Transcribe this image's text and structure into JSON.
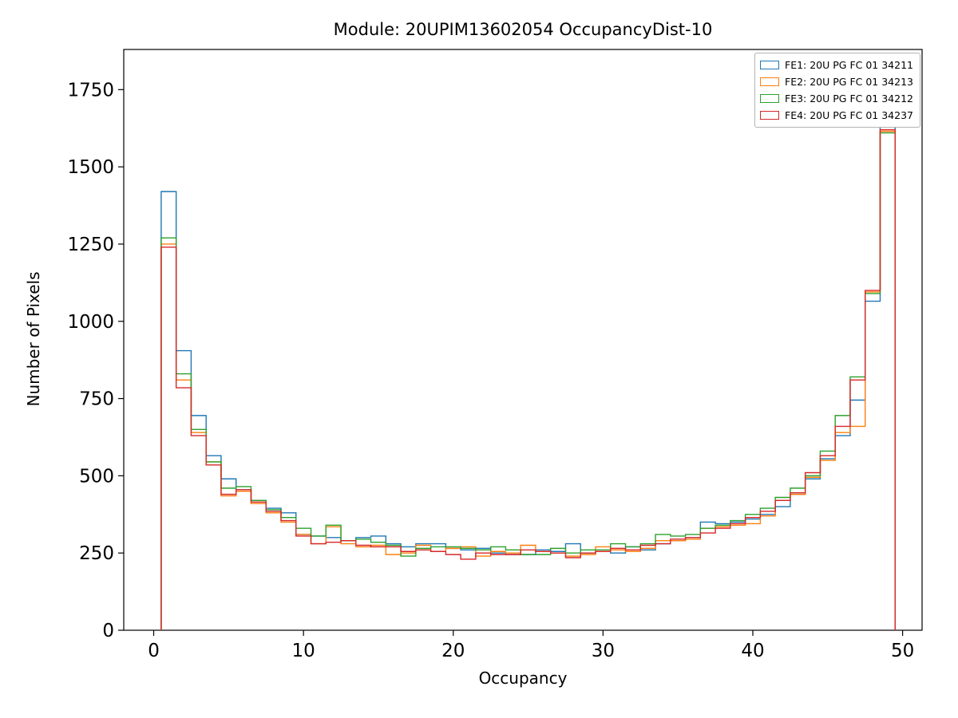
{
  "figure": {
    "title": "Module: 20UPIM13602054 OccupancyDist-10",
    "xlabel": "Occupancy",
    "ylabel": "Number of Pixels"
  },
  "chart_data": {
    "type": "histogram-step",
    "title": "Module: 20UPIM13602054 OccupancyDist-10",
    "xlabel": "Occupancy",
    "ylabel": "Number of Pixels",
    "xlim": [
      -2.0,
      51.3
    ],
    "ylim": [
      0,
      1880
    ],
    "xticks": [
      0,
      10,
      20,
      30,
      40,
      50
    ],
    "yticks": [
      0,
      250,
      500,
      750,
      1000,
      1250,
      1500,
      1750
    ],
    "grid": false,
    "legend_position": "upper right",
    "bin_start": 0.5,
    "bin_width": 1,
    "bin_count": 49,
    "series": [
      {
        "name": "FE1: 20U PG FC 01 34211",
        "color": "#1f77b4",
        "values": [
          1420,
          905,
          695,
          565,
          490,
          455,
          420,
          395,
          380,
          310,
          305,
          300,
          290,
          300,
          305,
          280,
          270,
          280,
          280,
          265,
          260,
          265,
          250,
          245,
          245,
          260,
          255,
          280,
          250,
          255,
          250,
          270,
          260,
          280,
          290,
          300,
          350,
          345,
          350,
          360,
          375,
          400,
          440,
          490,
          555,
          630,
          745,
          1065,
          1630
        ]
      },
      {
        "name": "FE2: 20U PG FC 01 34213",
        "color": "#ff7f0e",
        "values": [
          1250,
          810,
          640,
          545,
          435,
          450,
          410,
          380,
          350,
          310,
          280,
          335,
          280,
          270,
          275,
          245,
          250,
          275,
          255,
          265,
          270,
          240,
          255,
          250,
          275,
          255,
          250,
          240,
          245,
          270,
          260,
          255,
          265,
          290,
          290,
          295,
          330,
          335,
          340,
          345,
          370,
          420,
          440,
          495,
          550,
          640,
          660,
          1095,
          1615
        ]
      },
      {
        "name": "FE3: 20U PG FC 01 34212",
        "color": "#2ca02c",
        "values": [
          1270,
          830,
          650,
          545,
          460,
          465,
          420,
          390,
          365,
          330,
          305,
          340,
          290,
          295,
          285,
          275,
          240,
          265,
          270,
          270,
          265,
          260,
          270,
          260,
          245,
          245,
          265,
          250,
          260,
          260,
          280,
          270,
          280,
          310,
          305,
          310,
          330,
          340,
          355,
          375,
          395,
          430,
          460,
          500,
          580,
          695,
          820,
          1090,
          1610
        ]
      },
      {
        "name": "FE4: 20U PG FC 01 34237",
        "color": "#d62728",
        "values": [
          1240,
          785,
          630,
          535,
          440,
          455,
          415,
          385,
          355,
          305,
          280,
          285,
          290,
          275,
          270,
          270,
          255,
          260,
          255,
          245,
          230,
          250,
          245,
          245,
          260,
          255,
          250,
          235,
          250,
          255,
          265,
          260,
          275,
          280,
          295,
          300,
          315,
          330,
          345,
          365,
          385,
          420,
          445,
          510,
          565,
          660,
          810,
          1100,
          1620
        ]
      }
    ]
  }
}
